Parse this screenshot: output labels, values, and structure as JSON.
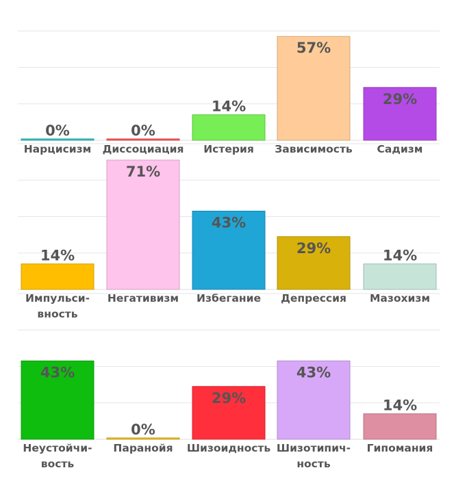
{
  "chart_data": [
    {
      "type": "bar",
      "ylim": [
        0,
        0.8
      ],
      "grid": true,
      "bars": [
        {
          "category": [
            "Нарцисизм"
          ],
          "value": 0.0,
          "label": "0%",
          "color": "#2ec4c4"
        },
        {
          "category": [
            "Диссоциация"
          ],
          "value": 0.0,
          "label": "0%",
          "color": "#ff5555"
        },
        {
          "category": [
            "Истерия"
          ],
          "value": 0.14,
          "label": "14%",
          "color": "#77ee55"
        },
        {
          "category": [
            "Зависимость"
          ],
          "value": 0.57,
          "label": "57%",
          "color": "#ffcc99"
        },
        {
          "category": [
            "Садизм"
          ],
          "value": 0.29,
          "label": "29%",
          "color": "#b44be6"
        }
      ]
    },
    {
      "type": "bar",
      "ylim": [
        0,
        0.8
      ],
      "grid": true,
      "bars": [
        {
          "category": [
            "Импульси-",
            "вность"
          ],
          "value": 0.14,
          "label": "14%",
          "color": "#ffbf00"
        },
        {
          "category": [
            "Негативизм"
          ],
          "value": 0.71,
          "label": "71%",
          "color": "#ffc4ec"
        },
        {
          "category": [
            "Избегание"
          ],
          "value": 0.43,
          "label": "43%",
          "color": "#1fa6d6"
        },
        {
          "category": [
            "Депрессия"
          ],
          "value": 0.29,
          "label": "29%",
          "color": "#d9b10b"
        },
        {
          "category": [
            "Мазохизм"
          ],
          "value": 0.14,
          "label": "14%",
          "color": "#c6e4d8"
        }
      ]
    },
    {
      "type": "bar",
      "ylim": [
        0,
        0.8
      ],
      "grid": true,
      "bars": [
        {
          "category": [
            "Неустойчи-",
            "вость"
          ],
          "value": 0.43,
          "label": "43%",
          "color": "#0fbd0f"
        },
        {
          "category": [
            "Паранойя"
          ],
          "value": 0.0,
          "label": "0%",
          "color": "#f0c020"
        },
        {
          "category": [
            "Шизоидность"
          ],
          "value": 0.29,
          "label": "29%",
          "color": "#ff2f3c"
        },
        {
          "category": [
            "Шизотипич-",
            "ность"
          ],
          "value": 0.43,
          "label": "43%",
          "color": "#d8a8f8"
        },
        {
          "category": [
            "Гипомания"
          ],
          "value": 0.14,
          "label": "14%",
          "color": "#de8fa2"
        }
      ]
    }
  ]
}
